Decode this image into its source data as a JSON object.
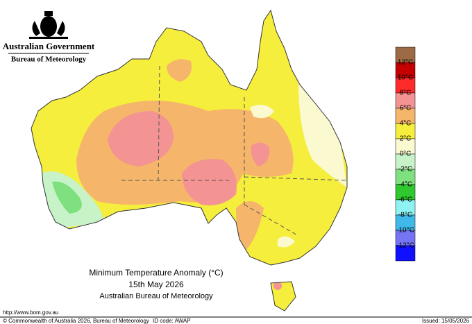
{
  "header": {
    "government": "Australian Government",
    "agency": "Bureau of Meteorology"
  },
  "map": {
    "title": "Minimum Temperature Anomaly (°C)",
    "date": "15th May 2026",
    "source": "Australian Bureau of Meteorology"
  },
  "legend": {
    "colors": [
      "#9c6b45",
      "#c40000",
      "#ff2a2a",
      "#f39393",
      "#f5b56a",
      "#f6ee3c",
      "#fbf9cf",
      "#c8f3c8",
      "#7fe07f",
      "#2fc82f",
      "#8ff2f2",
      "#40b8ea",
      "#7474f4",
      "#1010ff"
    ],
    "labels": [
      "12°C",
      "10°C",
      "8°C",
      "6°C",
      "4°C",
      "2°C",
      "0°C",
      "-2°C",
      "-4°C",
      "-6°C",
      "-8°C",
      "-10°C",
      "-12°C"
    ]
  },
  "footer": {
    "url": "http://www.bom.gov.au",
    "copyright": "© Commonwealth of Australia 2026, Bureau of Meteorology",
    "id_code": "ID code: AWAP",
    "issued": "Issued: 15/05/2026"
  }
}
